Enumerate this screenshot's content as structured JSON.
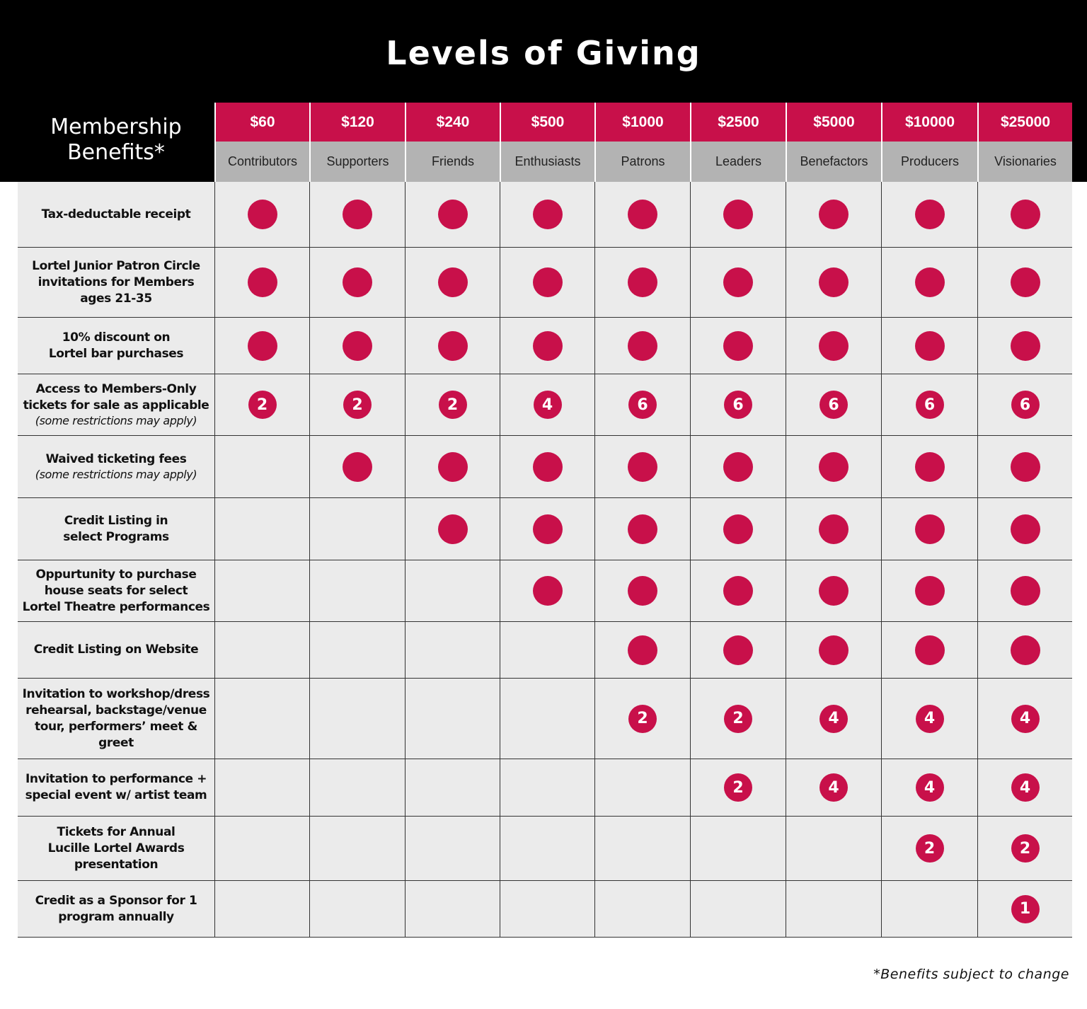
{
  "header": {
    "title": "Levels of Giving",
    "benefits_heading": [
      "Membership",
      "Benefits*"
    ]
  },
  "levels": [
    {
      "amount": "$60",
      "name": "Contributors"
    },
    {
      "amount": "$120",
      "name": "Supporters"
    },
    {
      "amount": "$240",
      "name": "Friends"
    },
    {
      "amount": "$500",
      "name": "Enthusiasts"
    },
    {
      "amount": "$1000",
      "name": "Patrons"
    },
    {
      "amount": "$2500",
      "name": "Leaders"
    },
    {
      "amount": "$5000",
      "name": "Benefactors"
    },
    {
      "amount": "$10000",
      "name": "Producers"
    },
    {
      "amount": "$25000",
      "name": "Visionaries"
    }
  ],
  "rows": [
    {
      "label": [
        "Tax-deductable receipt"
      ],
      "cells": [
        true,
        true,
        true,
        true,
        true,
        true,
        true,
        true,
        true
      ]
    },
    {
      "label": [
        "Lortel Junior Patron Circle",
        "invitations for Members",
        "ages 21-35"
      ],
      "cells": [
        true,
        true,
        true,
        true,
        true,
        true,
        true,
        true,
        true
      ]
    },
    {
      "label": [
        "10% discount on",
        "Lortel bar purchases"
      ],
      "cells": [
        true,
        true,
        true,
        true,
        true,
        true,
        true,
        true,
        true
      ]
    },
    {
      "label": [
        "Access to Members-Only",
        "tickets for sale as applicable"
      ],
      "note": "(some restrictions may apply)",
      "cells": [
        2,
        2,
        2,
        4,
        6,
        6,
        6,
        6,
        6
      ]
    },
    {
      "label": [
        "Waived ticketing fees"
      ],
      "note": "(some restrictions may apply)",
      "cells": [
        null,
        true,
        true,
        true,
        true,
        true,
        true,
        true,
        true
      ]
    },
    {
      "label": [
        "Credit Listing in",
        "select Programs"
      ],
      "cells": [
        null,
        null,
        true,
        true,
        true,
        true,
        true,
        true,
        true
      ]
    },
    {
      "label": [
        "Oppurtunity to purchase",
        "house seats for select",
        "Lortel Theatre performances"
      ],
      "cells": [
        null,
        null,
        null,
        true,
        true,
        true,
        true,
        true,
        true
      ]
    },
    {
      "label": [
        "Credit Listing on Website"
      ],
      "cells": [
        null,
        null,
        null,
        null,
        true,
        true,
        true,
        true,
        true
      ]
    },
    {
      "label": [
        "Invitation to workshop/dress",
        "rehearsal, backstage/venue",
        "tour, performers’ meet & greet"
      ],
      "cells": [
        null,
        null,
        null,
        null,
        2,
        2,
        4,
        4,
        4
      ]
    },
    {
      "label": [
        "Invitation to performance +",
        "special event w/ artist team"
      ],
      "cells": [
        null,
        null,
        null,
        null,
        null,
        2,
        4,
        4,
        4
      ]
    },
    {
      "label": [
        "Tickets for Annual",
        "Lucille Lortel Awards",
        "presentation"
      ],
      "cells": [
        null,
        null,
        null,
        null,
        null,
        null,
        null,
        2,
        2
      ]
    },
    {
      "label": [
        "Credit as a Sponsor for 1",
        "program annually"
      ],
      "cells": [
        null,
        null,
        null,
        null,
        null,
        null,
        null,
        null,
        1
      ]
    }
  ],
  "footnote": "*Benefits subject to change"
}
